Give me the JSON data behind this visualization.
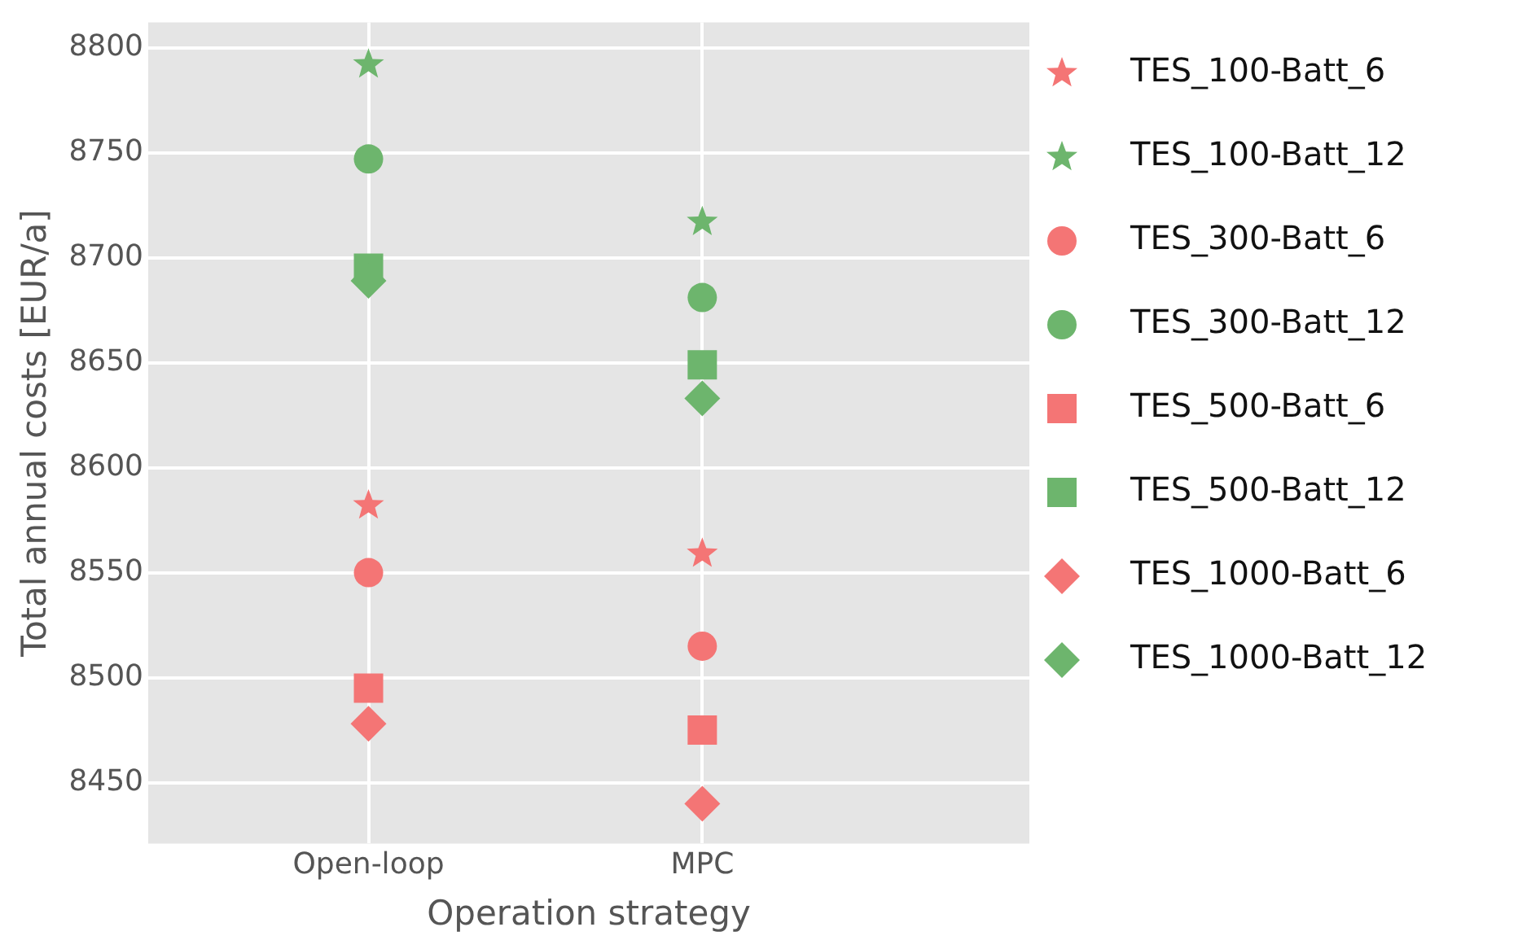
{
  "chart_data": {
    "type": "scatter",
    "xlabel": "Operation strategy",
    "ylabel": "Total annual costs [EUR/a]",
    "categories": [
      "Open-loop",
      "MPC"
    ],
    "series": [
      {
        "name": "TES_100-Batt_6",
        "color": "#f47575",
        "marker": "star",
        "values": [
          8582,
          8559
        ]
      },
      {
        "name": "TES_100-Batt_12",
        "color": "#6db56d",
        "marker": "star",
        "values": [
          8792,
          8717
        ]
      },
      {
        "name": "TES_300-Batt_6",
        "color": "#f47575",
        "marker": "circle",
        "values": [
          8550,
          8515
        ]
      },
      {
        "name": "TES_300-Batt_12",
        "color": "#6db56d",
        "marker": "circle",
        "values": [
          8747,
          8681
        ]
      },
      {
        "name": "TES_500-Batt_6",
        "color": "#f47575",
        "marker": "square",
        "values": [
          8495,
          8475
        ]
      },
      {
        "name": "TES_500-Batt_12",
        "color": "#6db56d",
        "marker": "square",
        "values": [
          8695,
          8649
        ]
      },
      {
        "name": "TES_1000-Batt_6",
        "color": "#f47575",
        "marker": "diamond",
        "values": [
          8478,
          8440
        ]
      },
      {
        "name": "TES_1000-Batt_12",
        "color": "#6db56d",
        "marker": "diamond",
        "values": [
          8689,
          8633
        ]
      }
    ],
    "ylim": [
      8421,
      8812
    ],
    "yticks": [
      8450,
      8500,
      8550,
      8600,
      8650,
      8700,
      8750,
      8800
    ],
    "grid": true,
    "legend": "right"
  }
}
